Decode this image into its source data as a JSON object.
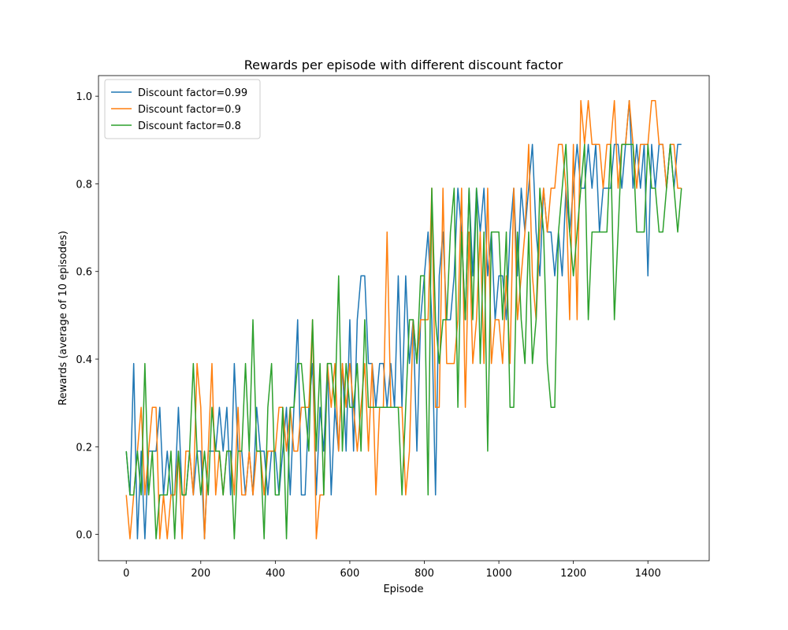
{
  "chart_data": {
    "type": "line",
    "title": "Rewards per episode with different discount factor",
    "xlabel": "Episode",
    "ylabel": "Rewards (average of 10 episodes)",
    "legend": "upper left",
    "x": [
      0,
      10,
      20,
      30,
      40,
      50,
      60,
      70,
      80,
      90,
      100,
      110,
      120,
      130,
      140,
      150,
      160,
      170,
      180,
      190,
      200,
      210,
      220,
      230,
      240,
      250,
      260,
      270,
      280,
      290,
      300,
      310,
      320,
      330,
      340,
      350,
      360,
      370,
      380,
      390,
      400,
      410,
      420,
      430,
      440,
      450,
      460,
      470,
      480,
      490,
      500,
      510,
      520,
      530,
      540,
      550,
      560,
      570,
      580,
      590,
      600,
      610,
      620,
      630,
      640,
      650,
      660,
      670,
      680,
      690,
      700,
      710,
      720,
      730,
      740,
      750,
      760,
      770,
      780,
      790,
      800,
      810,
      820,
      830,
      840,
      850,
      860,
      870,
      880,
      890,
      900,
      910,
      920,
      930,
      940,
      950,
      960,
      970,
      980,
      990,
      1000,
      1010,
      1020,
      1030,
      1040,
      1050,
      1060,
      1070,
      1080,
      1090,
      1100,
      1110,
      1120,
      1130,
      1140,
      1150,
      1160,
      1170,
      1180,
      1190,
      1200,
      1210,
      1220,
      1230,
      1240,
      1250,
      1260,
      1270,
      1280,
      1290,
      1300,
      1310,
      1320,
      1330,
      1340,
      1350,
      1360,
      1370,
      1380,
      1390,
      1400,
      1410,
      1420,
      1430,
      1440,
      1450,
      1460,
      1470,
      1480,
      1490
    ],
    "series": [
      {
        "name": "Discount factor=0.99",
        "color": "#1f77b4",
        "values": [
          0.19,
          0.09,
          0.39,
          -0.01,
          0.19,
          -0.01,
          0.19,
          0.19,
          0.19,
          0.29,
          0.09,
          0.19,
          0.09,
          0.09,
          0.29,
          0.09,
          0.09,
          0.19,
          0.09,
          0.19,
          0.19,
          -0.01,
          0.19,
          0.19,
          0.19,
          0.29,
          0.19,
          0.29,
          0.09,
          0.39,
          0.19,
          0.19,
          0.09,
          0.19,
          0.09,
          0.29,
          0.19,
          0.19,
          0.09,
          0.19,
          0.19,
          0.09,
          0.19,
          0.29,
          0.09,
          0.29,
          0.49,
          0.09,
          0.09,
          0.29,
          0.39,
          0.09,
          0.29,
          0.19,
          0.39,
          0.09,
          0.29,
          0.19,
          0.39,
          0.19,
          0.49,
          0.19,
          0.49,
          0.59,
          0.59,
          0.39,
          0.39,
          0.29,
          0.39,
          0.39,
          0.29,
          0.39,
          0.29,
          0.59,
          0.29,
          0.59,
          0.39,
          0.49,
          0.19,
          0.49,
          0.59,
          0.69,
          0.49,
          0.09,
          0.59,
          0.69,
          0.49,
          0.49,
          0.59,
          0.79,
          0.69,
          0.49,
          0.79,
          0.59,
          0.79,
          0.69,
          0.79,
          0.59,
          0.69,
          0.49,
          0.59,
          0.59,
          0.49,
          0.69,
          0.79,
          0.59,
          0.79,
          0.69,
          0.79,
          0.89,
          0.69,
          0.59,
          0.79,
          0.69,
          0.69,
          0.59,
          0.69,
          0.59,
          0.79,
          0.69,
          0.79,
          0.89,
          0.79,
          0.79,
          0.89,
          0.79,
          0.89,
          0.69,
          0.79,
          0.79,
          0.79,
          0.89,
          0.89,
          0.79,
          0.89,
          0.99,
          0.79,
          0.89,
          0.79,
          0.89,
          0.59,
          0.89,
          0.79,
          0.89,
          0.89,
          0.79,
          0.89,
          0.79,
          0.89,
          0.89
        ]
      },
      {
        "name": "Discount factor=0.9",
        "color": "#ff7f0e",
        "values": [
          0.09,
          -0.01,
          0.09,
          0.19,
          0.29,
          0.09,
          0.19,
          0.29,
          0.29,
          -0.01,
          0.09,
          -0.01,
          0.09,
          0.09,
          0.19,
          -0.01,
          0.19,
          0.19,
          0.09,
          0.39,
          0.29,
          -0.01,
          0.19,
          0.39,
          0.09,
          0.19,
          0.09,
          0.19,
          0.19,
          0.09,
          0.29,
          0.09,
          0.09,
          0.19,
          0.09,
          0.19,
          0.19,
          0.09,
          0.19,
          0.19,
          0.19,
          0.29,
          0.29,
          0.19,
          0.29,
          0.19,
          0.19,
          0.29,
          0.29,
          0.29,
          0.49,
          -0.01,
          0.09,
          0.09,
          0.39,
          0.29,
          0.39,
          0.19,
          0.39,
          0.29,
          0.39,
          0.29,
          0.19,
          0.29,
          0.39,
          0.19,
          0.39,
          0.09,
          0.29,
          0.29,
          0.69,
          0.29,
          0.29,
          0.29,
          0.29,
          0.09,
          0.19,
          0.49,
          0.39,
          0.49,
          0.49,
          0.49,
          0.79,
          0.29,
          0.29,
          0.79,
          0.39,
          0.39,
          0.39,
          0.49,
          0.79,
          0.29,
          0.69,
          0.39,
          0.49,
          0.69,
          0.39,
          0.79,
          0.39,
          0.49,
          0.49,
          0.39,
          0.59,
          0.39,
          0.79,
          0.49,
          0.59,
          0.69,
          0.89,
          0.59,
          0.49,
          0.69,
          0.79,
          0.69,
          0.79,
          0.79,
          0.89,
          0.89,
          0.79,
          0.49,
          0.89,
          0.49,
          0.99,
          0.89,
          0.99,
          0.89,
          0.89,
          0.89,
          0.79,
          0.89,
          0.89,
          0.99,
          0.79,
          0.89,
          0.89,
          0.99,
          0.89,
          0.79,
          0.89,
          0.89,
          0.89,
          0.99,
          0.99,
          0.89,
          0.89,
          0.79,
          0.89,
          0.89,
          0.79,
          0.79
        ]
      },
      {
        "name": "Discount factor=0.8",
        "color": "#2ca02c",
        "values": [
          0.19,
          0.09,
          0.09,
          0.19,
          0.09,
          0.39,
          0.09,
          0.19,
          -0.01,
          0.09,
          0.09,
          0.09,
          0.19,
          -0.01,
          0.19,
          0.09,
          0.09,
          0.19,
          0.39,
          0.19,
          0.09,
          0.19,
          0.09,
          0.29,
          0.19,
          0.19,
          0.09,
          0.19,
          0.19,
          -0.01,
          0.19,
          0.19,
          0.39,
          0.19,
          0.49,
          0.19,
          0.19,
          -0.01,
          0.29,
          0.39,
          0.09,
          0.09,
          0.29,
          -0.01,
          0.29,
          0.29,
          0.39,
          0.39,
          0.29,
          0.19,
          0.49,
          0.19,
          0.39,
          0.09,
          0.39,
          0.39,
          0.29,
          0.59,
          0.19,
          0.39,
          0.29,
          0.29,
          0.39,
          0.19,
          0.49,
          0.29,
          0.29,
          0.29,
          0.29,
          0.29,
          0.29,
          0.29,
          0.29,
          0.29,
          0.09,
          0.29,
          0.49,
          0.49,
          0.39,
          0.59,
          0.59,
          0.09,
          0.79,
          0.49,
          0.39,
          0.49,
          0.49,
          0.69,
          0.79,
          0.29,
          0.69,
          0.49,
          0.79,
          0.49,
          0.79,
          0.39,
          0.69,
          0.19,
          0.69,
          0.69,
          0.69,
          0.49,
          0.69,
          0.29,
          0.29,
          0.69,
          0.49,
          0.39,
          0.69,
          0.39,
          0.49,
          0.79,
          0.69,
          0.39,
          0.29,
          0.29,
          0.69,
          0.79,
          0.89,
          0.69,
          0.59,
          0.69,
          0.79,
          0.89,
          0.49,
          0.69,
          0.69,
          0.69,
          0.69,
          0.69,
          0.89,
          0.49,
          0.69,
          0.89,
          0.89,
          0.89,
          0.89,
          0.69,
          0.69,
          0.69,
          0.89,
          0.79,
          0.79,
          0.69,
          0.69,
          0.79,
          0.89,
          0.79,
          0.69,
          0.79
        ]
      }
    ],
    "xlim": [
      -74.5,
      1564.5
    ],
    "ylim": [
      -0.06,
      1.047
    ],
    "xticks": [
      0,
      200,
      400,
      600,
      800,
      1000,
      1200,
      1400
    ],
    "yticks": [
      {
        "value": 0,
        "label": "0.0"
      },
      {
        "value": 0.2,
        "label": "0.2"
      },
      {
        "value": 0.4,
        "label": "0.4"
      },
      {
        "value": 0.6,
        "label": "0.6"
      },
      {
        "value": 0.8,
        "label": "0.8"
      },
      {
        "value": 1,
        "label": "1.0"
      }
    ]
  }
}
